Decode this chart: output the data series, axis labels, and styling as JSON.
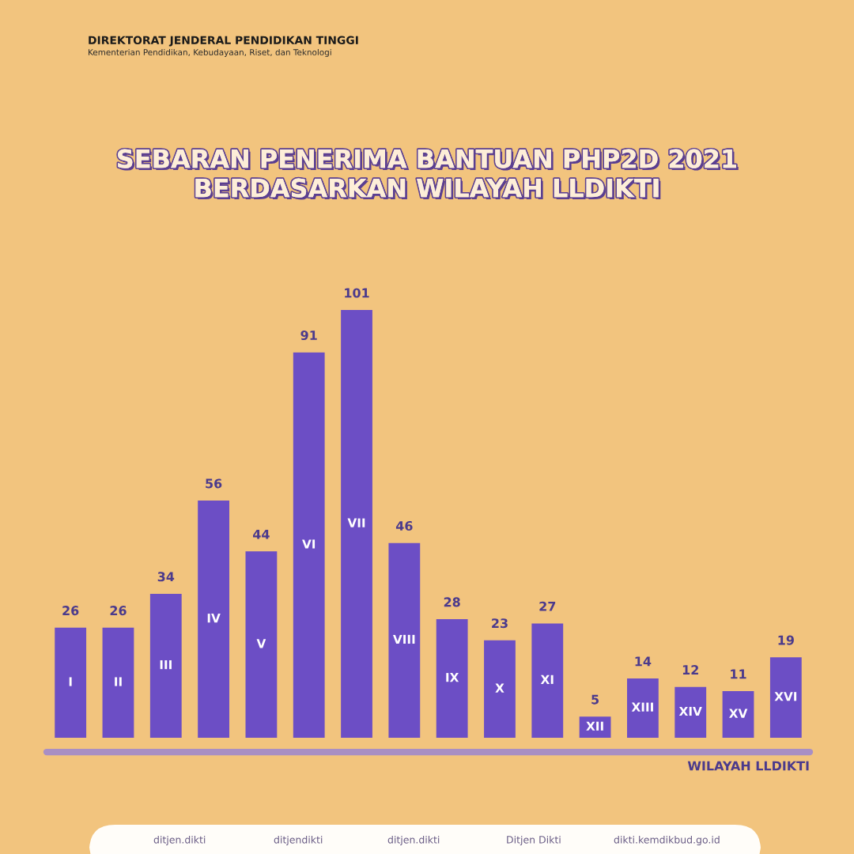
{
  "chart_data": {
    "type": "bar",
    "title": "SEBARAN PENERIMA BANTUAN PHP2D 2021\nBERDASARKAN WILAYAH LLDIKTI",
    "xlabel": "WILAYAH LLDIKTI",
    "categories": [
      "I",
      "II",
      "III",
      "IV",
      "V",
      "VI",
      "VII",
      "VIII",
      "IX",
      "X",
      "XI",
      "XII",
      "XIII",
      "XIV",
      "XV",
      "XVI"
    ],
    "values": [
      26,
      26,
      34,
      56,
      44,
      91,
      101,
      46,
      28,
      23,
      27,
      5,
      14,
      12,
      11,
      19
    ],
    "color": "#6c4ec5",
    "data_labels": true,
    "annotations": [
      "DIREKTORAT JENDERAL PENDIDIKAN TINGGI",
      "Kementerian Pendidikan, Kebudayaan, Riset, dan Teknologi",
      "ditjen.dikti",
      "ditjendikti",
      "ditjen.dikti",
      "Ditjen Dikti",
      "dikti.kemdikbud.go.id"
    ]
  }
}
